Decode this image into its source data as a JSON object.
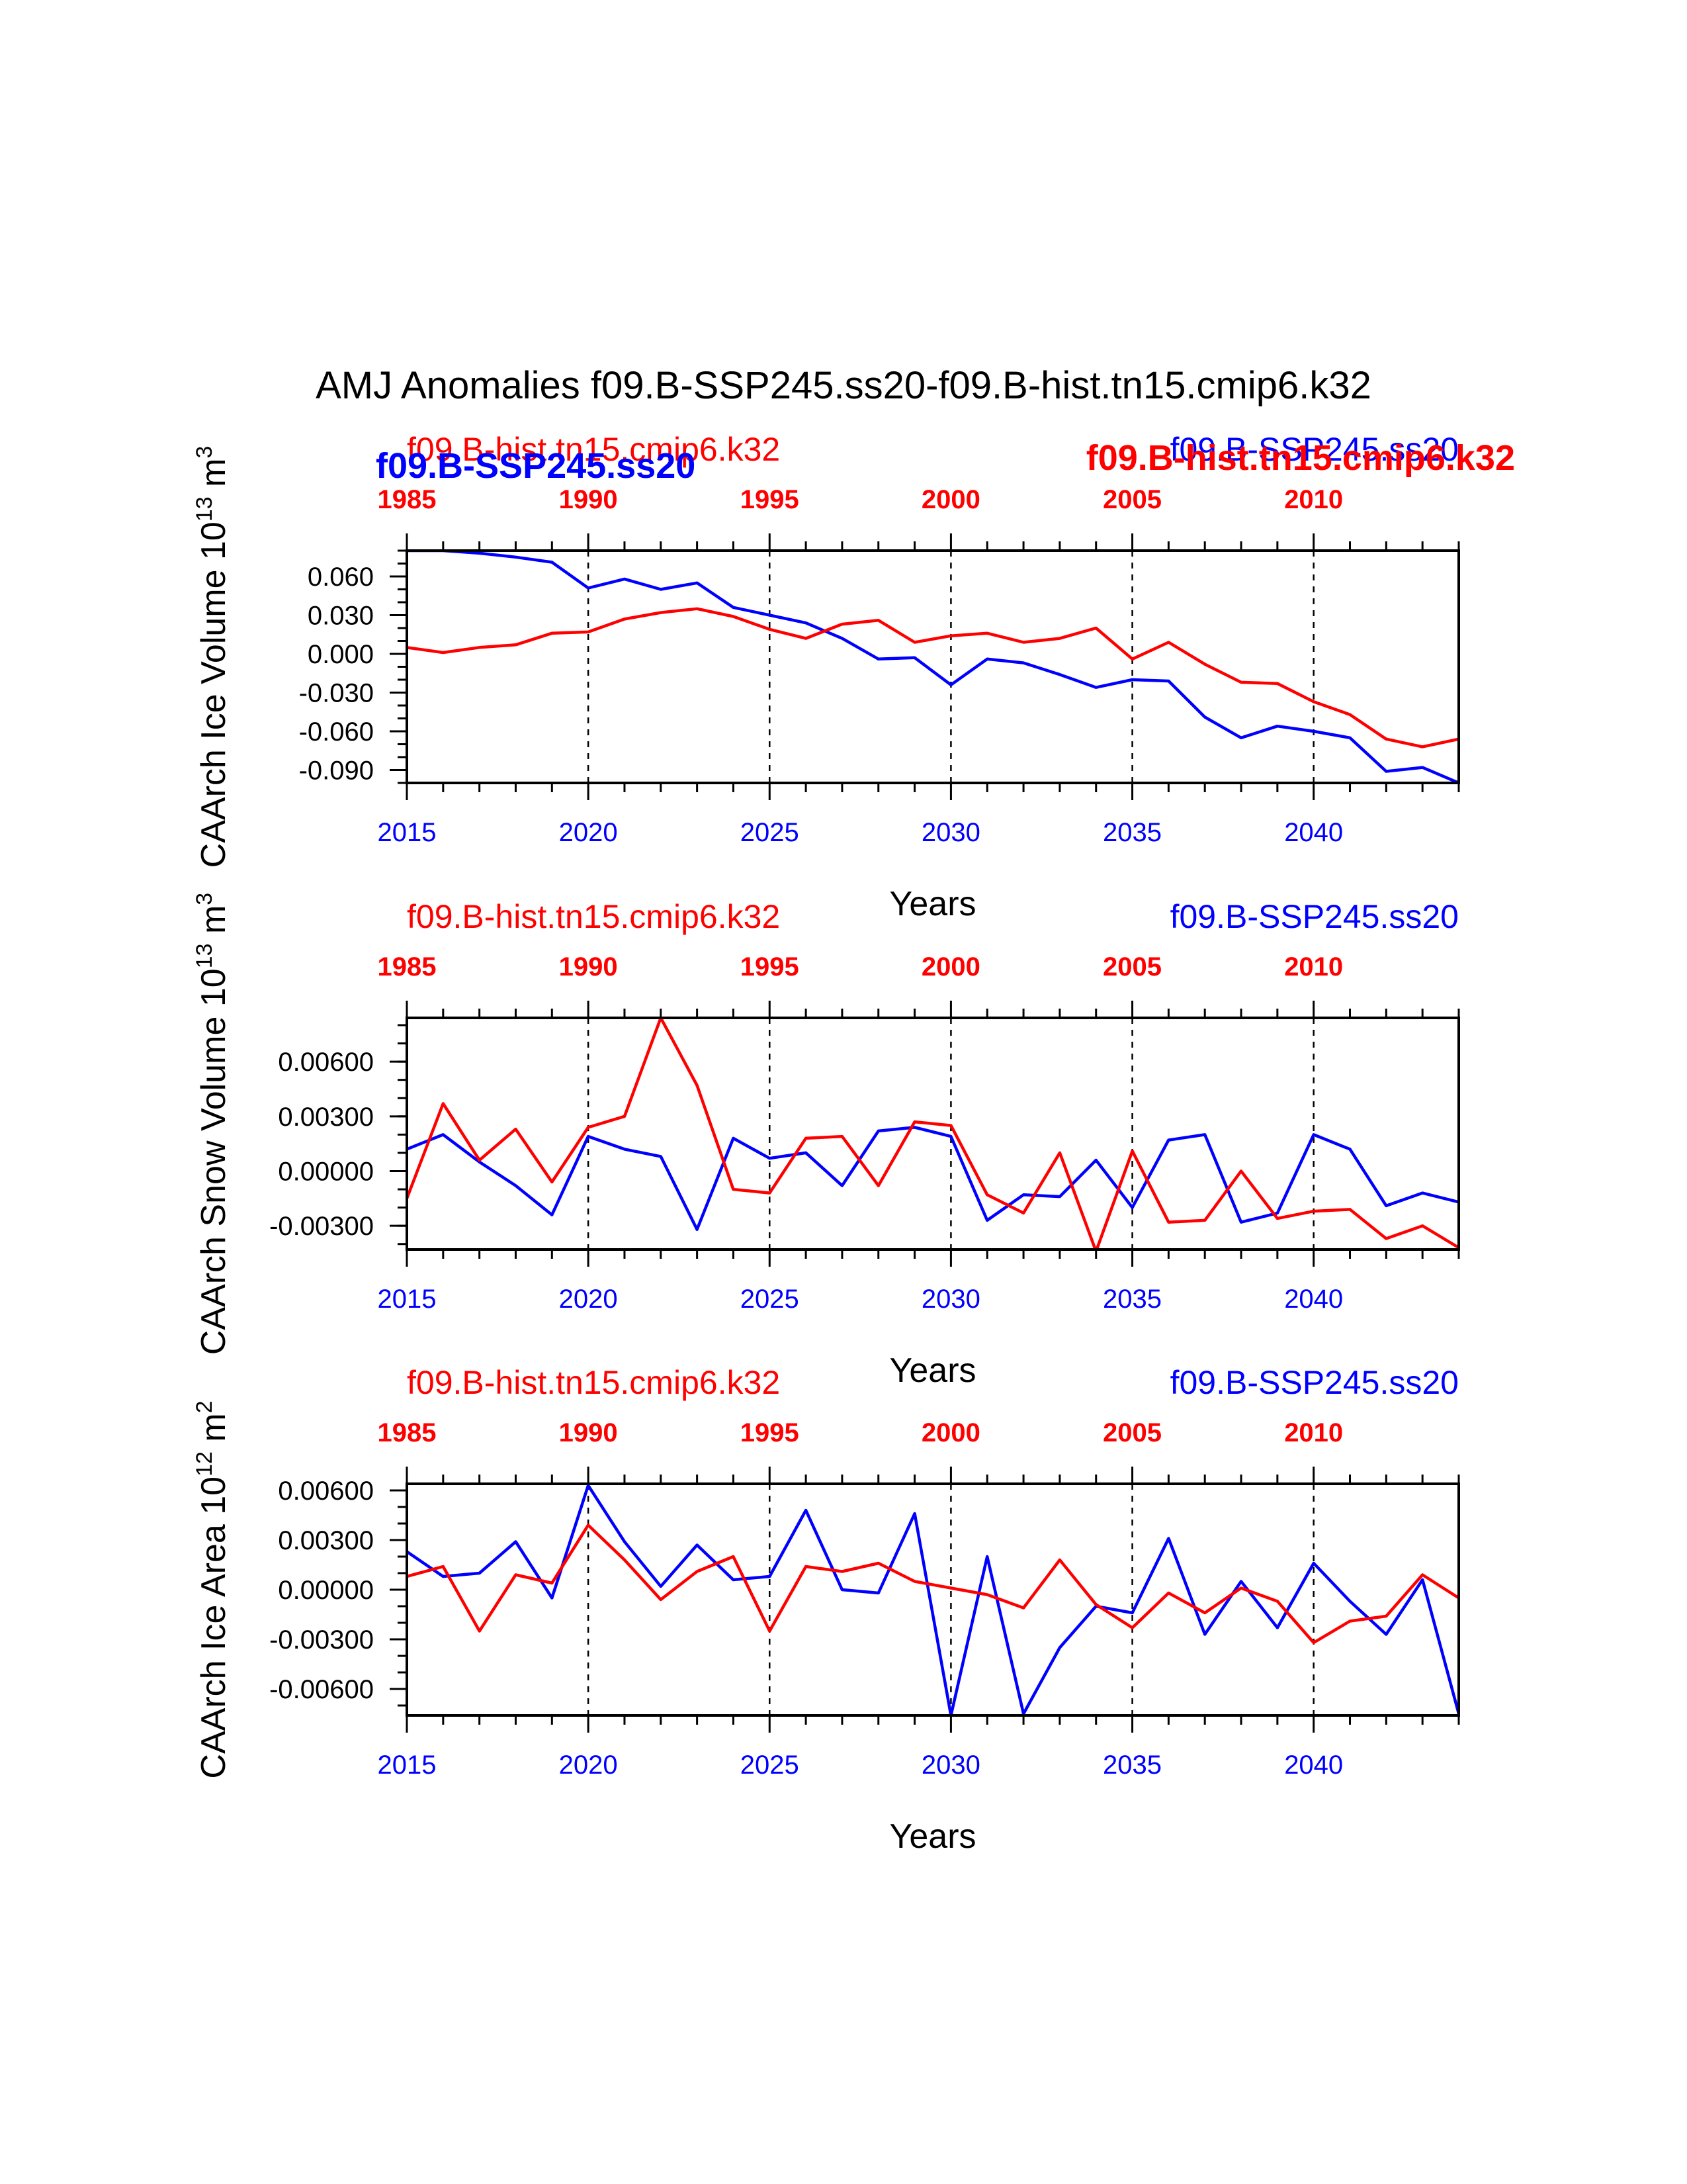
{
  "figure": {
    "title": "AMJ Anomalies f09.B-SSP245.ss20-f09.B-hist.tn15.cmip6.k32",
    "colors": {
      "blue": "#0000ff",
      "red": "#ff0000",
      "axis": "#000000"
    }
  },
  "chart_data": [
    {
      "type": "line",
      "ylabel": "CAArch Ice Volume 10^13 m^3",
      "ylabel_text": "CAArch Ice Volume 10",
      "ylabel_exp": "13",
      "ylabel_unit": " m",
      "ylabel_unit_exp": "3",
      "xlabel": "Years",
      "ylim": [
        -0.1,
        0.08
      ],
      "yticks": [
        -0.09,
        -0.06,
        -0.03,
        0.0,
        0.03,
        0.06
      ],
      "ytick_labels": [
        "-0.090",
        "-0.060",
        "-0.030",
        "0.000",
        "0.030",
        "0.060"
      ],
      "yminor_step": 0.01,
      "legend_left": "f09.B-hist.tn15.cmip6.k32",
      "legend_right": "f09.B-SSP245.ss20",
      "legend_overlap": [
        "f09.B-SSP245.ss20",
        "f09.B-hist.tn15.cmip6.k32"
      ],
      "bottom_axis": {
        "color": "#0000ff",
        "xlim": [
          2015,
          2044
        ],
        "ticks": [
          2015,
          2020,
          2025,
          2030,
          2035,
          2040
        ]
      },
      "top_axis": {
        "color": "#ff0000",
        "xlim": [
          1985,
          2014
        ],
        "ticks": [
          1985,
          1990,
          1995,
          2000,
          2005,
          2010
        ]
      },
      "dashed_lines_at": [
        2020,
        2025,
        2030,
        2035,
        2040
      ],
      "series": [
        {
          "name": "f09.B-SSP245.ss20",
          "color": "#0000ff",
          "x": [
            2015,
            2016,
            2017,
            2018,
            2019,
            2020,
            2021,
            2022,
            2023,
            2024,
            2025,
            2026,
            2027,
            2028,
            2029,
            2030,
            2031,
            2032,
            2033,
            2034,
            2035,
            2036,
            2037,
            2038,
            2039,
            2040,
            2041,
            2042,
            2043,
            2044
          ],
          "y": [
            0.08,
            0.08,
            0.078,
            0.075,
            0.071,
            0.051,
            0.058,
            0.05,
            0.055,
            0.036,
            0.03,
            0.024,
            0.012,
            -0.004,
            -0.003,
            -0.024,
            -0.004,
            -0.007,
            -0.016,
            -0.026,
            -0.02,
            -0.021,
            -0.049,
            -0.065,
            -0.056,
            -0.06,
            -0.065,
            -0.091,
            -0.088,
            -0.1
          ]
        },
        {
          "name": "f09.B-hist.tn15.cmip6.k32",
          "color": "#ff0000",
          "x": [
            1985,
            1986,
            1987,
            1988,
            1989,
            1990,
            1991,
            1992,
            1993,
            1994,
            1995,
            1996,
            1997,
            1998,
            1999,
            2000,
            2001,
            2002,
            2003,
            2004,
            2005,
            2006,
            2007,
            2008,
            2009,
            2010,
            2011,
            2012,
            2013,
            2014
          ],
          "y": [
            0.005,
            0.001,
            0.005,
            0.007,
            0.016,
            0.017,
            0.027,
            0.032,
            0.035,
            0.029,
            0.019,
            0.012,
            0.023,
            0.026,
            0.009,
            0.014,
            0.016,
            0.009,
            0.012,
            0.02,
            -0.004,
            0.009,
            -0.008,
            -0.022,
            -0.023,
            -0.037,
            -0.047,
            -0.066,
            -0.072,
            -0.066
          ]
        }
      ]
    },
    {
      "type": "line",
      "ylabel": "CAArch Snow Volume 10^13 m^3",
      "ylabel_text": "CAArch Snow Volume 10",
      "ylabel_exp": "13",
      "ylabel_unit": " m",
      "ylabel_unit_exp": "3",
      "xlabel": "Years",
      "ylim": [
        -0.0043,
        0.0084
      ],
      "yticks": [
        -0.003,
        0.0,
        0.003,
        0.006
      ],
      "ytick_labels": [
        "-0.00300",
        "0.00000",
        "0.00300",
        "0.00600"
      ],
      "yminor_step": 0.001,
      "legend_left": "f09.B-hist.tn15.cmip6.k32",
      "legend_right": "f09.B-SSP245.ss20",
      "bottom_axis": {
        "color": "#0000ff",
        "xlim": [
          2015,
          2044
        ],
        "ticks": [
          2015,
          2020,
          2025,
          2030,
          2035,
          2040
        ]
      },
      "top_axis": {
        "color": "#ff0000",
        "xlim": [
          1985,
          2014
        ],
        "ticks": [
          1985,
          1990,
          1995,
          2000,
          2005,
          2010
        ]
      },
      "dashed_lines_at": [
        2020,
        2025,
        2030,
        2035,
        2040
      ],
      "series": [
        {
          "name": "f09.B-SSP245.ss20",
          "color": "#0000ff",
          "x": [
            2015,
            2016,
            2017,
            2018,
            2019,
            2020,
            2021,
            2022,
            2023,
            2024,
            2025,
            2026,
            2027,
            2028,
            2029,
            2030,
            2031,
            2032,
            2033,
            2034,
            2035,
            2036,
            2037,
            2038,
            2039,
            2040,
            2041,
            2042,
            2043,
            2044
          ],
          "y": [
            0.0012,
            0.002,
            0.0005,
            -0.0008,
            -0.0024,
            0.0019,
            0.0012,
            0.0008,
            -0.0032,
            0.0018,
            0.0007,
            0.001,
            -0.0008,
            0.0022,
            0.0024,
            0.0019,
            -0.0027,
            -0.0013,
            -0.0014,
            0.0006,
            -0.002,
            0.0017,
            0.002,
            -0.0028,
            -0.0023,
            0.002,
            0.0012,
            -0.0019,
            -0.0012,
            -0.0017
          ]
        },
        {
          "name": "f09.B-hist.tn15.cmip6.k32",
          "color": "#ff0000",
          "x": [
            1985,
            1986,
            1987,
            1988,
            1989,
            1990,
            1991,
            1992,
            1993,
            1994,
            1995,
            1996,
            1997,
            1998,
            1999,
            2000,
            2001,
            2002,
            2003,
            2004,
            2005,
            2006,
            2007,
            2008,
            2009,
            2010,
            2011,
            2012,
            2013,
            2014
          ],
          "y": [
            -0.0015,
            0.0037,
            0.0006,
            0.0023,
            -0.0006,
            0.0024,
            0.003,
            0.0084,
            0.0047,
            -0.001,
            -0.0012,
            0.0018,
            0.0019,
            -0.0008,
            0.0027,
            0.0025,
            -0.0013,
            -0.0023,
            0.001,
            -0.0044,
            0.0011,
            -0.0028,
            -0.0027,
            0.0,
            -0.0026,
            -0.0022,
            -0.0021,
            -0.0037,
            -0.003,
            -0.0042
          ]
        }
      ]
    },
    {
      "type": "line",
      "ylabel": "CAArch Ice Area 10^12 m^2",
      "ylabel_text": "CAArch Ice Area 10",
      "ylabel_exp": "12",
      "ylabel_unit": " m",
      "ylabel_unit_exp": "2",
      "xlabel": "Years",
      "ylim": [
        -0.0076,
        0.0064
      ],
      "yticks": [
        -0.006,
        -0.003,
        0.0,
        0.003,
        0.006
      ],
      "ytick_labels": [
        "-0.00600",
        "-0.00300",
        "0.00000",
        "0.00300",
        "0.00600"
      ],
      "yminor_step": 0.001,
      "legend_left": "f09.B-hist.tn15.cmip6.k32",
      "legend_right": "f09.B-SSP245.ss20",
      "bottom_axis": {
        "color": "#0000ff",
        "xlim": [
          2015,
          2044
        ],
        "ticks": [
          2015,
          2020,
          2025,
          2030,
          2035,
          2040
        ]
      },
      "top_axis": {
        "color": "#ff0000",
        "xlim": [
          1985,
          2014
        ],
        "ticks": [
          1985,
          1990,
          1995,
          2000,
          2005,
          2010
        ]
      },
      "dashed_lines_at": [
        2020,
        2025,
        2030,
        2035,
        2040
      ],
      "series": [
        {
          "name": "f09.B-SSP245.ss20",
          "color": "#0000ff",
          "x": [
            2015,
            2016,
            2017,
            2018,
            2019,
            2020,
            2021,
            2022,
            2023,
            2024,
            2025,
            2026,
            2027,
            2028,
            2029,
            2030,
            2031,
            2032,
            2033,
            2034,
            2035,
            2036,
            2037,
            2038,
            2039,
            2040,
            2041,
            2042,
            2043,
            2044
          ],
          "y": [
            0.0023,
            0.0008,
            0.001,
            0.0029,
            -0.0005,
            0.0063,
            0.0029,
            0.0002,
            0.0027,
            0.0006,
            0.0008,
            0.0048,
            0.0,
            -0.0002,
            0.0046,
            -0.0076,
            0.002,
            -0.0075,
            -0.0035,
            -0.001,
            -0.0014,
            0.0031,
            -0.0027,
            0.0005,
            -0.0023,
            0.0016,
            -0.0007,
            -0.0027,
            0.0006,
            -0.0075
          ]
        },
        {
          "name": "f09.B-hist.tn15.cmip6.k32",
          "color": "#ff0000",
          "x": [
            1985,
            1986,
            1987,
            1988,
            1989,
            1990,
            1991,
            1992,
            1993,
            1994,
            1995,
            1996,
            1997,
            1998,
            1999,
            2000,
            2001,
            2002,
            2003,
            2004,
            2005,
            2006,
            2007,
            2008,
            2009,
            2010,
            2011,
            2012,
            2013,
            2014
          ],
          "y": [
            0.0008,
            0.0014,
            -0.0025,
            0.0009,
            0.0004,
            0.0039,
            0.0018,
            -0.0006,
            0.0011,
            0.002,
            -0.0025,
            0.0014,
            0.0011,
            0.0016,
            0.0005,
            0.0001,
            -0.0003,
            -0.0011,
            0.0018,
            -0.0009,
            -0.0023,
            -0.0002,
            -0.0014,
            0.0001,
            -0.0007,
            -0.0032,
            -0.0019,
            -0.0016,
            0.0009,
            -0.0005
          ]
        }
      ]
    }
  ]
}
